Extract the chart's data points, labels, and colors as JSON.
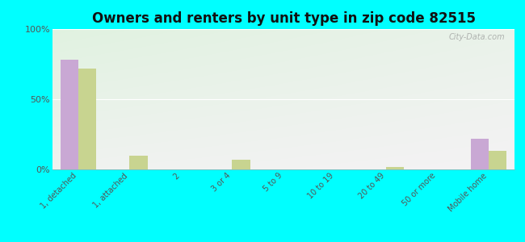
{
  "title": "Owners and renters by unit type in zip code 82515",
  "categories": [
    "1, detached",
    "1, attached",
    "2",
    "3 or 4",
    "5 to 9",
    "10 to 19",
    "20 to 49",
    "50 or more",
    "Mobile home"
  ],
  "owner_values": [
    78,
    0,
    0,
    0,
    0,
    0,
    0,
    0,
    22
  ],
  "renter_values": [
    72,
    10,
    0,
    7,
    0,
    0,
    2,
    0,
    13
  ],
  "owner_color": "#c9a8d4",
  "renter_color": "#c8d490",
  "background_color": "#00ffff",
  "ylim": [
    0,
    100
  ],
  "yticks": [
    0,
    50,
    100
  ],
  "ytick_labels": [
    "0%",
    "50%",
    "100%"
  ],
  "watermark": "City-Data.com",
  "bar_width": 0.35,
  "title_fontsize": 12,
  "tick_fontsize": 7,
  "ytick_fontsize": 8
}
